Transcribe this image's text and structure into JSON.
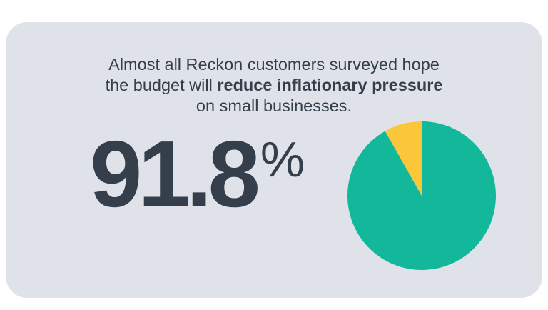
{
  "headline": {
    "line1": "Almost all Reckon customers surveyed hope",
    "line2_before": "the budget will ",
    "line2_bold": "reduce inflationary pressure",
    "line3": "on small businesses."
  },
  "stat": {
    "value": "91.8",
    "unit": "%"
  },
  "chart_data": {
    "type": "pie",
    "values": [
      91.8,
      8.2
    ],
    "colors": [
      "#12b899",
      "#fcc63a"
    ],
    "start_angle_deg": 0,
    "direction": "clockwise",
    "legend": "none"
  }
}
